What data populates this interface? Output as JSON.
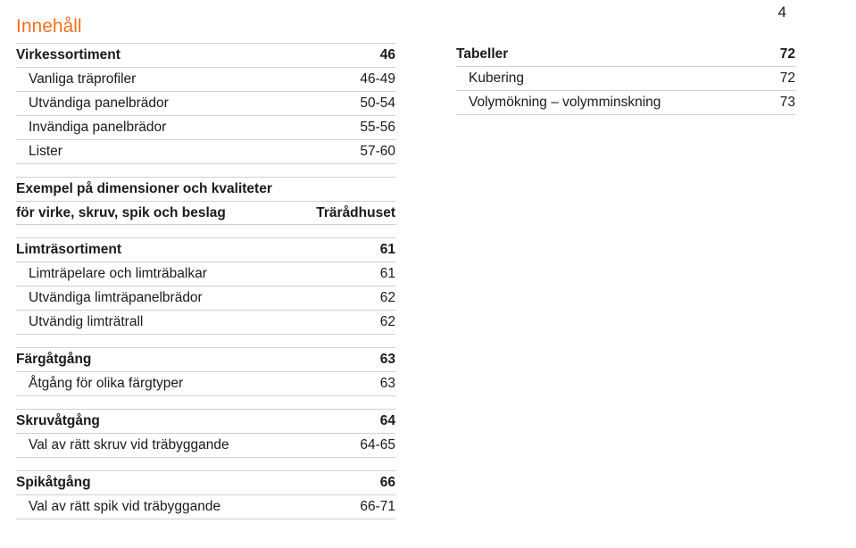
{
  "page_number": "4",
  "heading": "Innehåll",
  "left": {
    "sections": [
      {
        "rows": [
          {
            "label": "Virkessortiment",
            "value": "46",
            "head": true
          },
          {
            "label": "Vanliga träprofiler",
            "value": "46-49",
            "indent": true
          },
          {
            "label": "Utvändiga panelbrädor",
            "value": "50-54",
            "indent": true
          },
          {
            "label": "Invändiga panelbrädor",
            "value": "55-56",
            "indent": true
          },
          {
            "label": "Lister",
            "value": "57-60",
            "indent": true
          }
        ]
      },
      {
        "rows": [
          {
            "label": "Exempel på dimensioner och kvaliteter",
            "value": "",
            "head": true
          },
          {
            "label": "för virke, skruv, spik och beslag",
            "value": "Trärådhuset",
            "head": true
          }
        ]
      },
      {
        "rows": [
          {
            "label": "Limträsortiment",
            "value": "61",
            "head": true
          },
          {
            "label": "Limträpelare och limträbalkar",
            "value": "61",
            "indent": true
          },
          {
            "label": "Utvändiga limträpanelbrädor",
            "value": "62",
            "indent": true
          },
          {
            "label": "Utvändig limträtrall",
            "value": "62",
            "indent": true
          }
        ]
      },
      {
        "rows": [
          {
            "label": "Färgåtgång",
            "value": "63",
            "head": true
          },
          {
            "label": "Åtgång för olika färgtyper",
            "value": "63",
            "indent": true
          }
        ]
      },
      {
        "rows": [
          {
            "label": "Skruvåtgång",
            "value": "64",
            "head": true
          },
          {
            "label": "Val av rätt skruv vid träbyggande",
            "value": "64-65",
            "indent": true
          }
        ]
      },
      {
        "rows": [
          {
            "label": "Spikåtgång",
            "value": "66",
            "head": true
          },
          {
            "label": "Val av rätt spik vid träbyggande",
            "value": "66-71",
            "indent": true
          }
        ]
      }
    ]
  },
  "right": {
    "sections": [
      {
        "rows": [
          {
            "label": "Tabeller",
            "value": "72",
            "head": true
          },
          {
            "label": "Kubering",
            "value": "72",
            "indent": true
          },
          {
            "label": "Volymökning – volymminskning",
            "value": "73",
            "indent": true
          }
        ]
      }
    ]
  }
}
